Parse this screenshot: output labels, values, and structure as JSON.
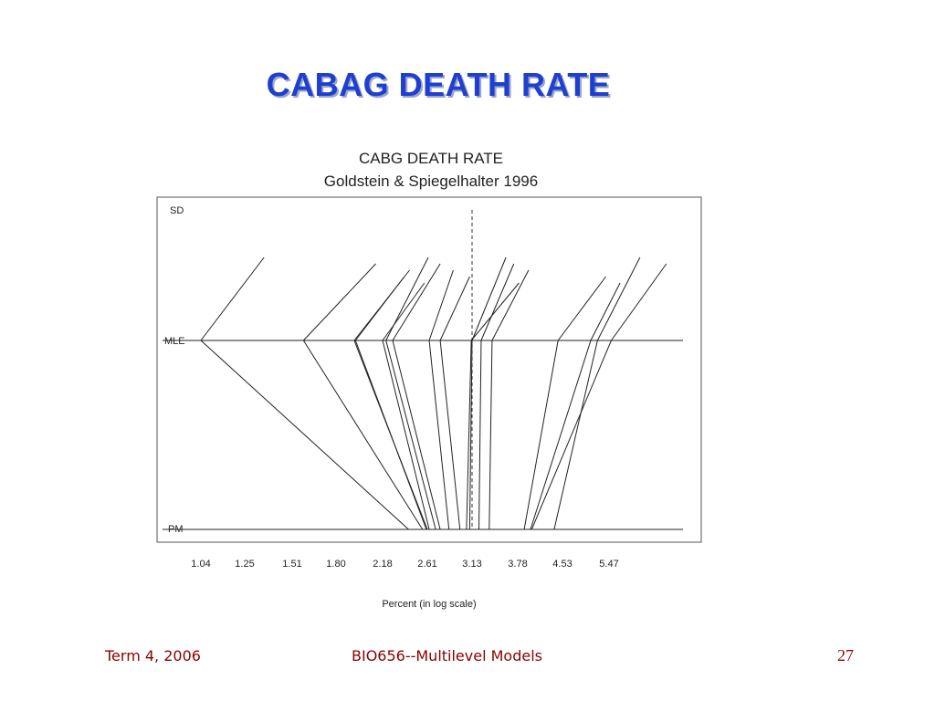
{
  "slide": {
    "title": "CABAG DEATH RATE",
    "footer_left": "Term 4, 2006",
    "footer_center": "BIO656--Multilevel Models",
    "page_number": "27"
  },
  "chart_data": {
    "type": "line",
    "title": "CABG DEATH RATE",
    "subtitle": "Goldstein & Spiegelhalter 1996",
    "xlabel": "Percent (in log scale)",
    "x_scale": "log",
    "row_labels": [
      "SD",
      "MLE",
      "PM"
    ],
    "x_ticks": [
      1.04,
      1.25,
      1.51,
      1.8,
      2.18,
      2.61,
      3.13,
      3.78,
      4.53,
      5.47
    ],
    "x_tick_labels": [
      "1.04",
      "1.25",
      "1.51",
      "1.80",
      "2.18",
      "2.61",
      "3.13",
      "3.78",
      "4.53",
      "5.47"
    ],
    "reference_x": 3.13,
    "hospitals": [
      {
        "mle": 1.04,
        "sd_end": 1.35,
        "pm": 2.42
      },
      {
        "mle": 1.58,
        "sd_end": 2.12,
        "pm": 2.56
      },
      {
        "mle": 1.94,
        "sd_end": 2.43,
        "pm": 2.61
      },
      {
        "mle": 1.95,
        "sd_end": 2.38,
        "pm": 2.6
      },
      {
        "mle": 2.18,
        "sd_end": 2.58,
        "pm": 2.63
      },
      {
        "mle": 2.21,
        "sd_end": 2.62,
        "pm": 2.7
      },
      {
        "mle": 2.27,
        "sd_end": 2.75,
        "pm": 2.75
      },
      {
        "mle": 2.63,
        "sd_end": 2.9,
        "pm": 2.85
      },
      {
        "mle": 2.75,
        "sd_end": 3.1,
        "pm": 2.98
      },
      {
        "mle": 3.12,
        "sd_end": 3.8,
        "pm": 3.06
      },
      {
        "mle": 3.13,
        "sd_end": 3.6,
        "pm": 3.1
      },
      {
        "mle": 3.25,
        "sd_end": 3.72,
        "pm": 3.22
      },
      {
        "mle": 3.4,
        "sd_end": 3.95,
        "pm": 3.36
      },
      {
        "mle": 4.45,
        "sd_end": 5.4,
        "pm": 3.88
      },
      {
        "mle": 5.08,
        "sd_end": 5.72,
        "pm": 3.98
      },
      {
        "mle": 5.22,
        "sd_end": 6.2,
        "pm": 4.38
      },
      {
        "mle": 5.52,
        "sd_end": 6.9,
        "pm": 4.0
      }
    ]
  }
}
